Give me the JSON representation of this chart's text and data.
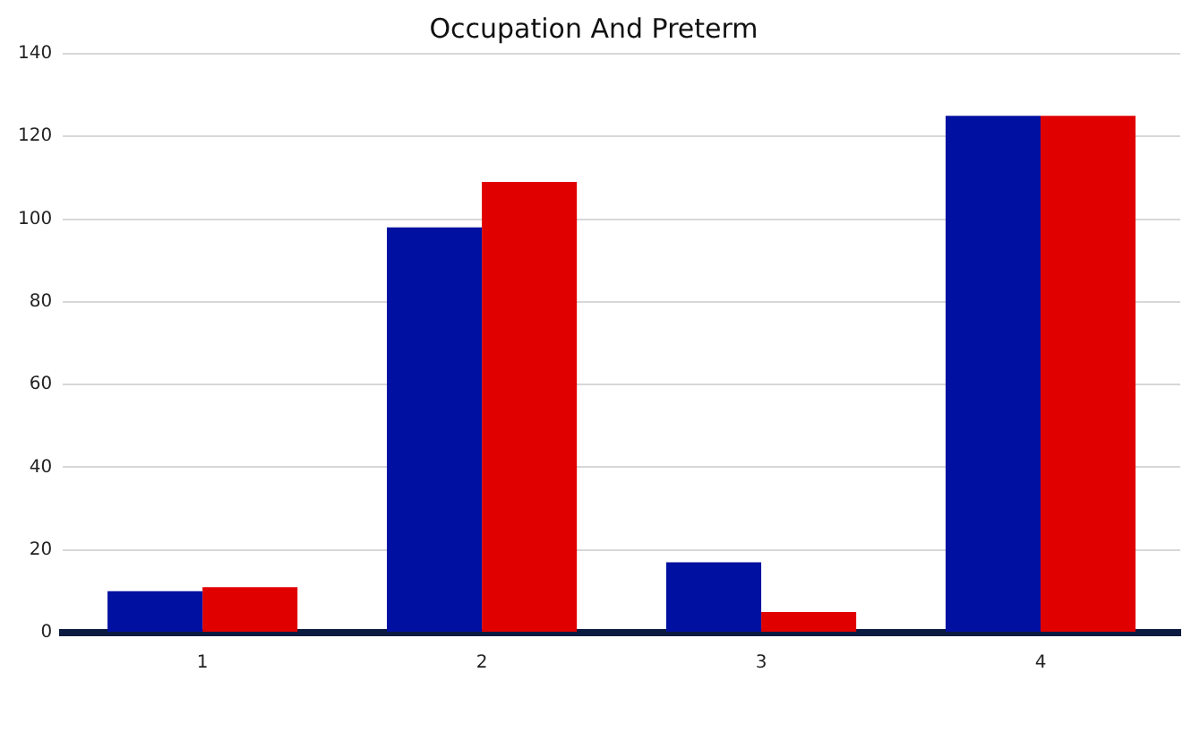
{
  "chart_data": {
    "type": "bar",
    "title": "Occupation And Preterm",
    "categories": [
      "1",
      "2",
      "3",
      "4"
    ],
    "series": [
      {
        "color": "#0010a0",
        "values": [
          10,
          98,
          17,
          125
        ]
      },
      {
        "color": "#e00000",
        "values": [
          11,
          109,
          5,
          125
        ]
      }
    ],
    "ylim": [
      0,
      140
    ],
    "yticks": [
      0,
      20,
      40,
      60,
      80,
      100,
      120,
      140
    ],
    "grid": "y",
    "legend": false
  }
}
